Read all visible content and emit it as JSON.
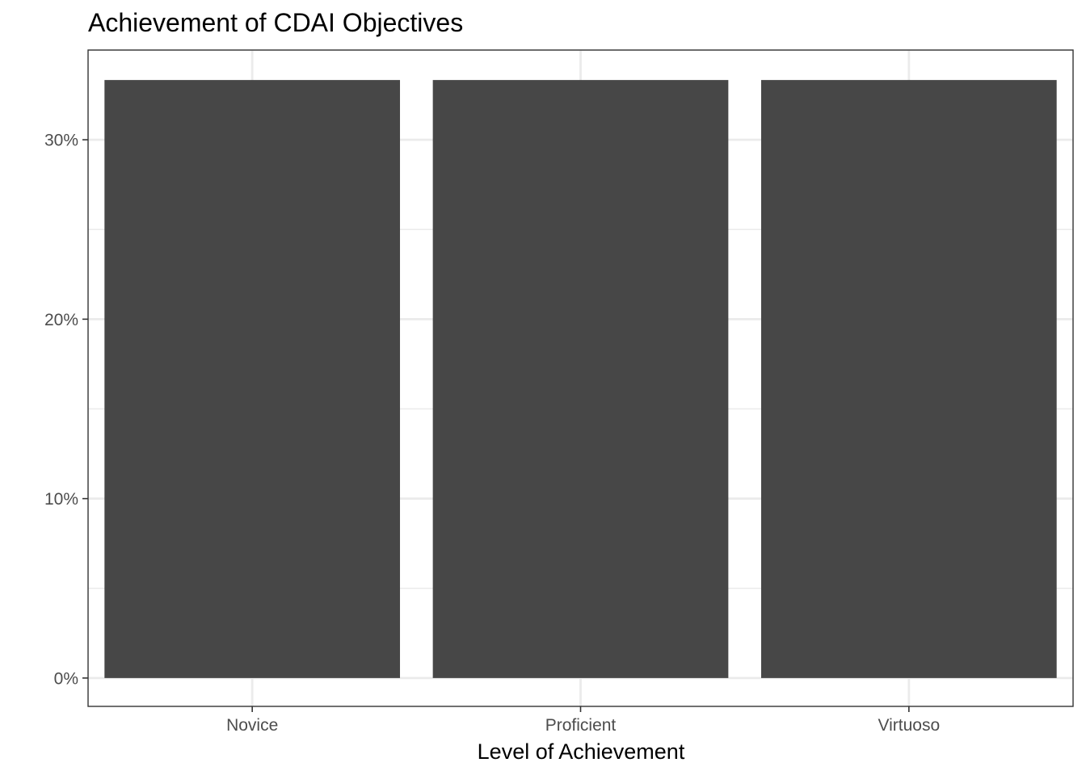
{
  "chart_data": {
    "type": "bar",
    "title": "Achievement of CDAI Objectives",
    "xlabel": "Level of Achievement",
    "ylabel": "",
    "categories": [
      "Novice",
      "Proficient",
      "Virtuoso"
    ],
    "values": [
      0.3333,
      0.3333,
      0.3333
    ],
    "ylim": [
      -0.0158,
      0.35
    ],
    "y_ticks": [
      0,
      0.1,
      0.2,
      0.3
    ],
    "y_tick_labels": [
      "0%",
      "10%",
      "20%",
      "30%"
    ],
    "grid": true,
    "legend": "none",
    "colors": {
      "bar": "#474747",
      "grid": "#ebebeb",
      "panel_border": "#333333",
      "tick": "#333333",
      "tick_label": "#4d4d4d",
      "background": "#ffffff"
    }
  }
}
